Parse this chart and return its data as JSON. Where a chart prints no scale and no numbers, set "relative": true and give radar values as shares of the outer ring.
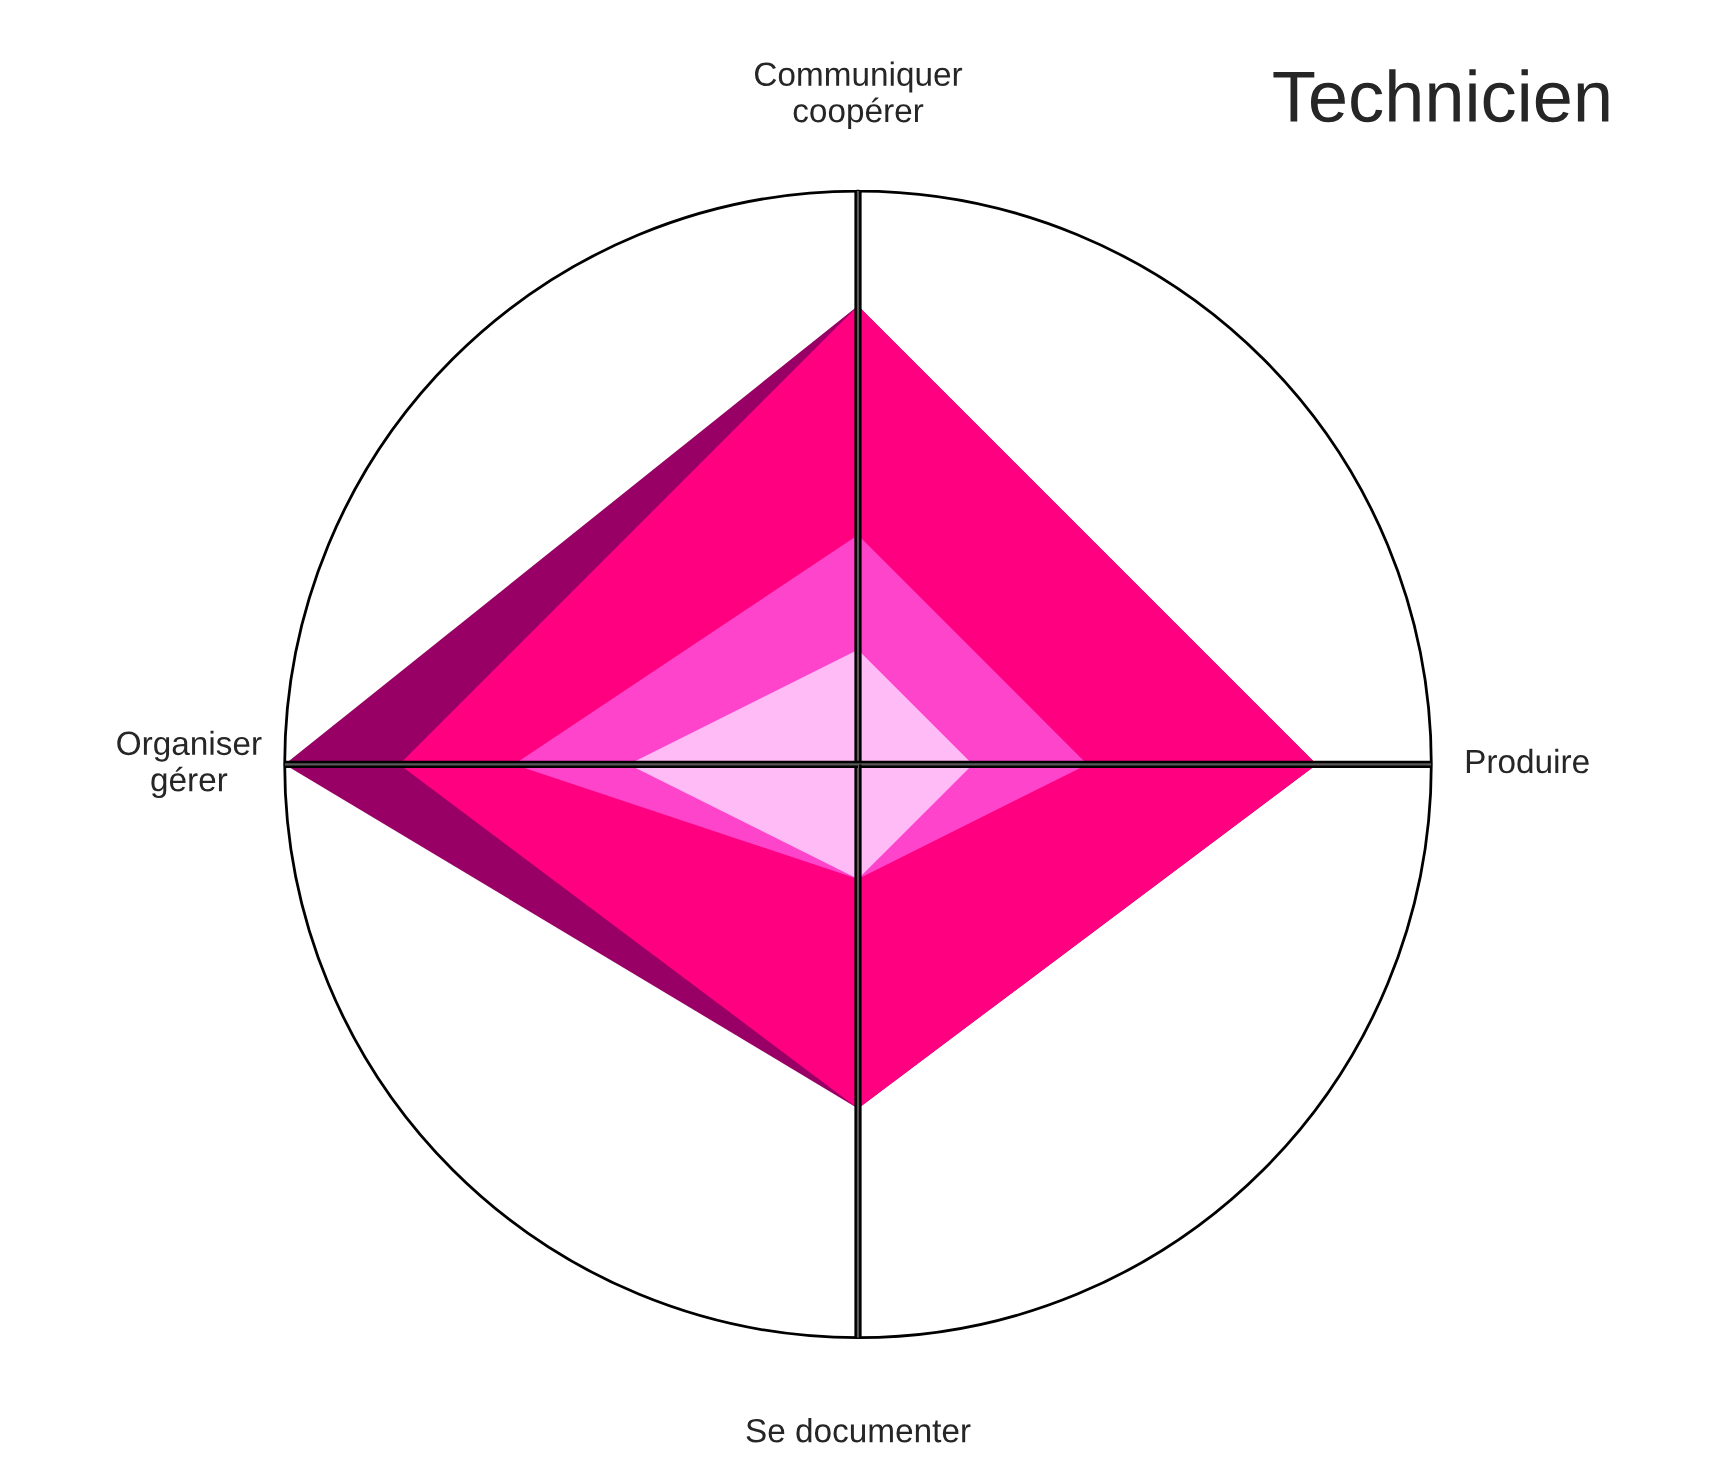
{
  "chart_data": {
    "type": "radar",
    "title": "Technicien",
    "relative": true,
    "categories": [
      "Communiquer\ncoopérer",
      "Produire",
      "Se documenter",
      "Organiser\ngérer"
    ],
    "series": [
      {
        "color": "#990066",
        "values": [
          0.8,
          0.8,
          0.6,
          1.0
        ]
      },
      {
        "color": "#ff0080",
        "values": [
          0.8,
          0.8,
          0.6,
          0.8
        ]
      },
      {
        "color": "#ff44cc",
        "values": [
          0.4,
          0.4,
          0.2,
          0.6
        ]
      },
      {
        "color": "#ffbbf5",
        "values": [
          0.2,
          0.2,
          0.2,
          0.4
        ]
      }
    ]
  }
}
